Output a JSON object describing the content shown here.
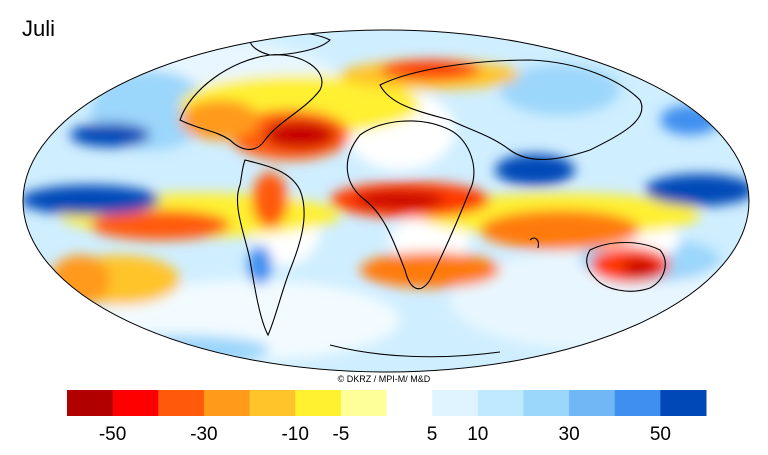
{
  "title": "Juli",
  "credit": "© DKRZ / MPI-M/ M&D",
  "legend": {
    "colors": [
      "#b00000",
      "#ff0000",
      "#ff5a0a",
      "#ff9a1a",
      "#ffc42a",
      "#fff030",
      "#ffff9a",
      "#ffffff",
      "#dff4ff",
      "#bfe9ff",
      "#9bd6fb",
      "#6fb8f5",
      "#3f8ff0",
      "#0048b8"
    ],
    "tick_labels": [
      {
        "text": "-50",
        "index": 1
      },
      {
        "text": "-30",
        "index": 3
      },
      {
        "text": "-10",
        "index": 5
      },
      {
        "text": "-5",
        "index": 6
      },
      {
        "text": "5",
        "index": 8
      },
      {
        "text": "10",
        "index": 9
      },
      {
        "text": "30",
        "index": 11
      },
      {
        "text": "50",
        "index": 13
      }
    ]
  }
}
